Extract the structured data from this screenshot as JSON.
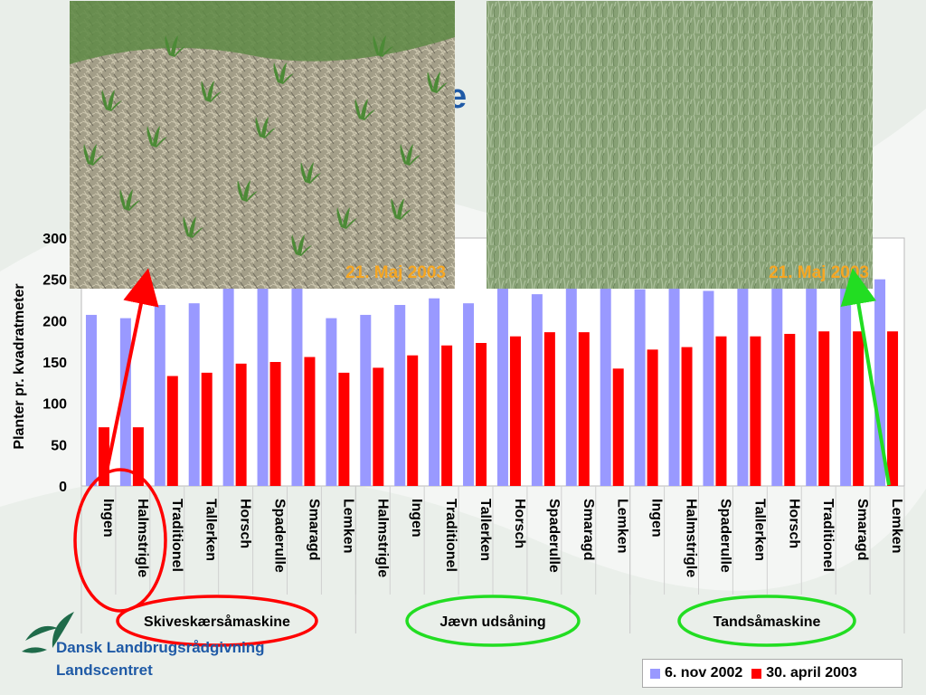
{
  "title_fragment": "e",
  "photos": [
    {
      "caption": "21. Maj 2003"
    },
    {
      "caption": "21. Maj 2003"
    }
  ],
  "groups": [
    {
      "label": "Skiveskærsåmaskine"
    },
    {
      "label": "Jævn udsåning"
    },
    {
      "label": "Tandsåmaskine"
    }
  ],
  "organization": {
    "line1": "Dansk Landbrugsrådgivning",
    "line2": "Landscentret"
  },
  "colors": {
    "series1": "#9999ff",
    "series2": "#ff0000",
    "title": "#1f5aa6",
    "photo_caption": "#f5a623",
    "arrow_left": "#ff0000",
    "arrow_right": "#22dd22"
  },
  "chart_data": {
    "type": "bar",
    "ylabel": "Planter pr. kvadratmeter",
    "xlabel": "",
    "ylim": [
      0,
      300
    ],
    "yticks": [
      0,
      50,
      100,
      150,
      200,
      250,
      300
    ],
    "grid": false,
    "legend_position": "bottom-right",
    "categories": [
      "Ingen",
      "Halmstrigle",
      "Traditionel",
      "Tallerken",
      "Horsch",
      "Spaderulle",
      "Smaragd",
      "Lemken",
      "Halmstrigle",
      "Ingen",
      "Traditionel",
      "Tallerken",
      "Horsch",
      "Spaderulle",
      "Smaragd",
      "Lemken",
      "Ingen",
      "Halmstrigle",
      "Spaderulle",
      "Tallerken",
      "Horsch",
      "Traditionel",
      "Smaragd",
      "Lemken"
    ],
    "series": [
      {
        "name": "6. nov 2002",
        "values": [
          207,
          203,
          219,
          221,
          245,
          248,
          250,
          203,
          207,
          219,
          227,
          221,
          250,
          232,
          245,
          250,
          238,
          250,
          236,
          250,
          250,
          250,
          272,
          250
        ]
      },
      {
        "name": "30. april 2003",
        "values": [
          71,
          71,
          133,
          137,
          148,
          150,
          156,
          137,
          143,
          158,
          170,
          173,
          181,
          186,
          186,
          142,
          165,
          168,
          181,
          181,
          184,
          187,
          187,
          187
        ]
      }
    ]
  }
}
